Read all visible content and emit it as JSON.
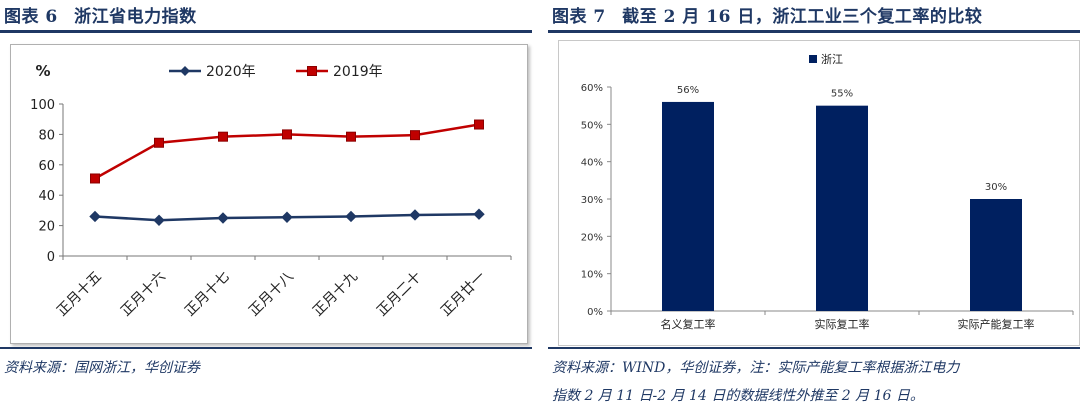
{
  "left": {
    "figure_label": "图表 6",
    "title": "浙江省电力指数",
    "source": "资料来源：国网浙江，华创证券",
    "chart_data": {
      "type": "line",
      "ylabel": "%",
      "ylim": [
        0,
        100
      ],
      "yticks": [
        0,
        20,
        40,
        60,
        80,
        100
      ],
      "categories": [
        "正月十五",
        "正月十六",
        "正月十七",
        "正月十八",
        "正月十九",
        "正月二十",
        "正月廿一"
      ],
      "series": [
        {
          "name": "2020年",
          "values": [
            26,
            23.5,
            25,
            25.5,
            26,
            27,
            27.5
          ],
          "color": "#1f3864",
          "marker": "diamond"
        },
        {
          "name": "2019年",
          "values": [
            51,
            74.5,
            78.5,
            80,
            78.5,
            79.5,
            86.5
          ],
          "color": "#c00000",
          "marker": "square"
        }
      ],
      "legend": "top-center",
      "grid": false
    }
  },
  "right": {
    "figure_label": "图表 7",
    "title": "截至 2 月 16 日，浙江工业三个复工率的比较",
    "source_lines": [
      "资料来源：WIND，华创证券，注：实际产能复工率根据浙江电力",
      "指数 2 月 11 日-2 月 14 日的数据线性外推至 2 月 16 日。"
    ],
    "chart_data": {
      "type": "bar",
      "categories": [
        "名义复工率",
        "实际复工率",
        "实际产能复工率"
      ],
      "series": [
        {
          "name": "浙江",
          "values": [
            56,
            55,
            30
          ],
          "color": "#002060"
        }
      ],
      "data_labels": [
        "56%",
        "55%",
        "30%"
      ],
      "ylim": [
        0,
        60
      ],
      "yticks": [
        "0%",
        "10%",
        "20%",
        "30%",
        "40%",
        "50%",
        "60%"
      ],
      "legend": "top-left",
      "grid": false
    }
  }
}
